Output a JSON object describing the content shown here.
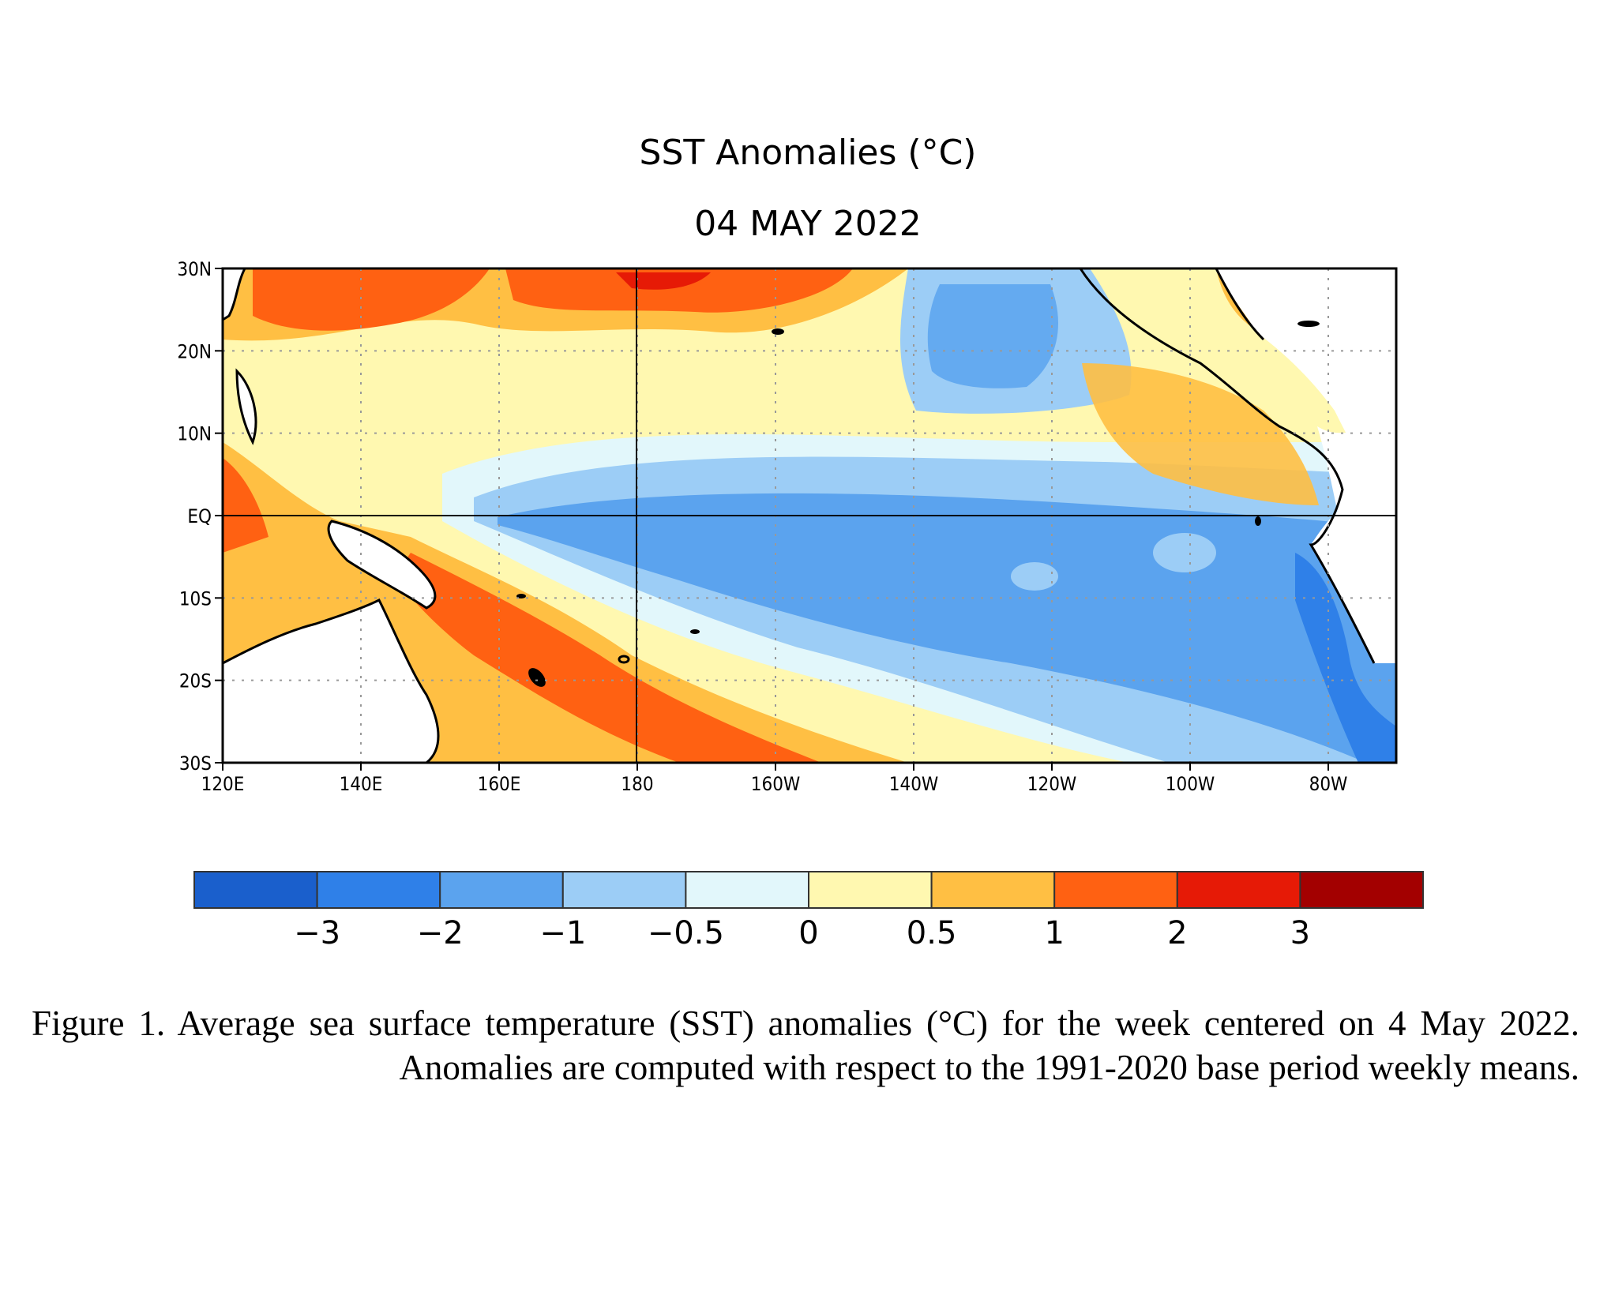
{
  "figure": {
    "title_line1": "SST Anomalies (°C)",
    "title_line2": "04 MAY 2022",
    "caption": "Figure 1. Average sea surface temperature (SST) anomalies (°C) for the week centered on 4 May 2022.  Anomalies are computed with respect to the 1991-2020 base period weekly means."
  },
  "map": {
    "region": {
      "lon_range_deg_east": [
        120,
        290
      ],
      "lat_range": [
        -30,
        30
      ]
    },
    "lat_ticks": [
      "30N",
      "20N",
      "10N",
      "EQ",
      "10S",
      "20S",
      "30S"
    ],
    "lon_ticks": [
      "120E",
      "140E",
      "160E",
      "180",
      "160W",
      "140W",
      "120W",
      "100W",
      "80W"
    ],
    "gridlines": "dotted",
    "reference_lines": [
      "EQ",
      "180"
    ]
  },
  "colorbar": {
    "colors": [
      "#1a5fcc",
      "#2f80e8",
      "#5ba3ee",
      "#9ccdf6",
      "#e2f7fb",
      "#fff8b0",
      "#ffbf43",
      "#ff6112",
      "#e61a06",
      "#a30000"
    ],
    "labels": [
      "−3",
      "−2",
      "−1",
      "−0.5",
      "0",
      "0.5",
      "1",
      "2",
      "3"
    ]
  }
}
